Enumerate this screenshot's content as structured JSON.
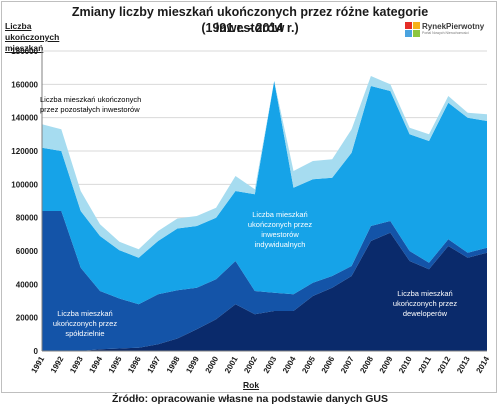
{
  "chart_data": {
    "type": "area",
    "stacked": true,
    "title": "Zmiany liczby mieszkań ukończonych przez różne kategorie inwestorów",
    "subtitle": "(1991 r. - 2014 r.)",
    "ylabel": "Liczba ukończonych mieszkań",
    "xlabel": "Rok",
    "ylim": [
      0,
      180000
    ],
    "yticks": [
      "0",
      "20000",
      "40000",
      "60000",
      "80000",
      "100000",
      "120000",
      "140000",
      "160000",
      "180000"
    ],
    "grid": true,
    "x": [
      "1991",
      "1992",
      "1993",
      "1994",
      "1995",
      "1996",
      "1997",
      "1998",
      "1999",
      "2000",
      "2001",
      "2002",
      "2003",
      "2004",
      "2005",
      "2006",
      "2007",
      "2008",
      "2009",
      "2010",
      "2011",
      "2012",
      "2013",
      "2014"
    ],
    "series": [
      {
        "name": "Liczba mieszkań ukończonych przez deweloperów",
        "color": "#0a2a6b",
        "values": [
          0,
          0,
          0,
          1000,
          1500,
          2000,
          4000,
          7500,
          13000,
          19000,
          28000,
          22000,
          24000,
          24000,
          33000,
          38000,
          45000,
          66000,
          71000,
          54000,
          49000,
          63000,
          56000,
          59000
        ]
      },
      {
        "name": "Liczba mieszkań ukończonych przez spółdzielnie",
        "color": "#1454a8",
        "values": [
          84000,
          84000,
          50000,
          35000,
          30000,
          26000,
          30000,
          29000,
          25000,
          24000,
          26000,
          14000,
          11000,
          10000,
          8000,
          7000,
          6000,
          9000,
          7000,
          6000,
          4000,
          4000,
          3000,
          3000
        ]
      },
      {
        "name": "Liczba mieszkań ukończonych przez inwestorów indywidualnych",
        "color": "#16a3e8",
        "values": [
          38000,
          36000,
          34000,
          33000,
          29000,
          28000,
          32000,
          37000,
          37000,
          37000,
          42000,
          58000,
          127000,
          64000,
          62000,
          59000,
          68000,
          84000,
          78000,
          70000,
          73000,
          82000,
          81000,
          76000
        ]
      },
      {
        "name": "Liczba mieszkań ukończonych przez pozostałych inwestorów",
        "color": "#a6dcf0",
        "values": [
          14000,
          13000,
          12000,
          7000,
          5000,
          5000,
          6000,
          6000,
          6000,
          6000,
          9000,
          3000,
          0,
          10000,
          11000,
          11000,
          14000,
          6000,
          4000,
          4000,
          4000,
          4000,
          3000,
          4000
        ]
      }
    ]
  },
  "source": "Źródło: opracowanie własne na podstawie danych GUS",
  "logo": {
    "name": "RynekPierwotny",
    "tagline": "Portal Nowych Nieruchomości",
    "colors": [
      "#e52d27",
      "#f6b21b",
      "#4aa3df",
      "#8cc63f"
    ]
  }
}
